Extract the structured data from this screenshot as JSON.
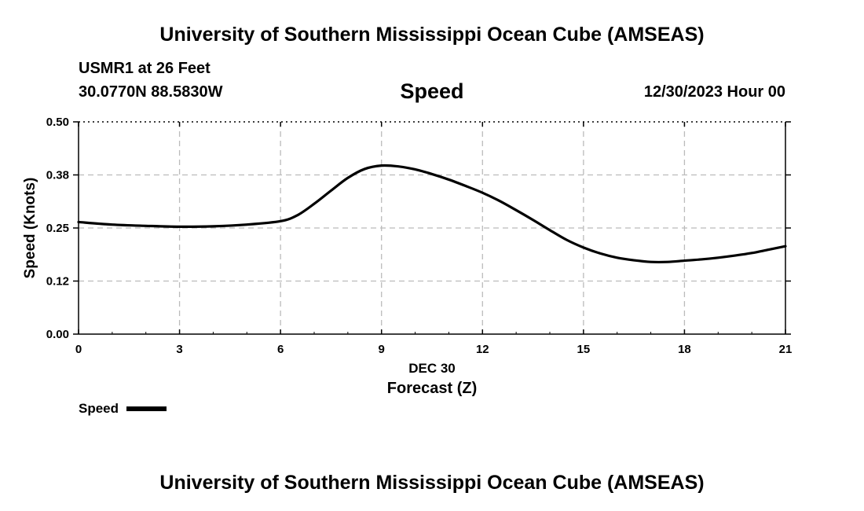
{
  "header": {
    "title": "University of Southern Mississippi Ocean Cube (AMSEAS)",
    "station": "USMR1 at 26 Feet",
    "coords": "30.0770N  88.5830W",
    "parameter": "Speed",
    "date_hour": "12/30/2023 Hour 00"
  },
  "footer": {
    "title": "University of Southern Mississippi Ocean Cube (AMSEAS)"
  },
  "chart_data": {
    "type": "line",
    "title": "Speed",
    "xlabel": "Forecast (Z)",
    "xsublabel": "DEC 30",
    "ylabel": "Speed (Knots)",
    "xlim": [
      0,
      21
    ],
    "ylim": [
      0,
      0.5
    ],
    "xticks": [
      0,
      3,
      6,
      9,
      12,
      15,
      18,
      21
    ],
    "yticks": [
      0.0,
      0.125,
      0.25,
      0.375,
      0.5
    ],
    "ytick_labels": [
      "0.00",
      "0.12",
      "0.25",
      "0.38",
      "0.50"
    ],
    "grid": true,
    "legend": "bottom-left",
    "colors": {
      "line": "#000000",
      "grid": "#bbbbbb"
    },
    "series": [
      {
        "name": "Speed",
        "x": [
          0,
          1,
          2,
          3,
          4,
          5,
          6,
          6.5,
          7,
          7.5,
          8,
          8.5,
          9,
          9.5,
          10,
          10.5,
          11,
          11.5,
          12,
          12.5,
          13,
          13.5,
          14,
          14.5,
          15,
          15.5,
          16,
          16.5,
          17,
          17.5,
          18,
          18.5,
          19,
          19.5,
          20,
          20.5,
          21
        ],
        "values": [
          0.264,
          0.258,
          0.255,
          0.253,
          0.254,
          0.258,
          0.266,
          0.28,
          0.307,
          0.338,
          0.368,
          0.389,
          0.397,
          0.395,
          0.388,
          0.377,
          0.364,
          0.349,
          0.333,
          0.314,
          0.292,
          0.269,
          0.245,
          0.222,
          0.204,
          0.19,
          0.18,
          0.174,
          0.17,
          0.17,
          0.173,
          0.176,
          0.18,
          0.185,
          0.191,
          0.199,
          0.207
        ]
      }
    ]
  }
}
